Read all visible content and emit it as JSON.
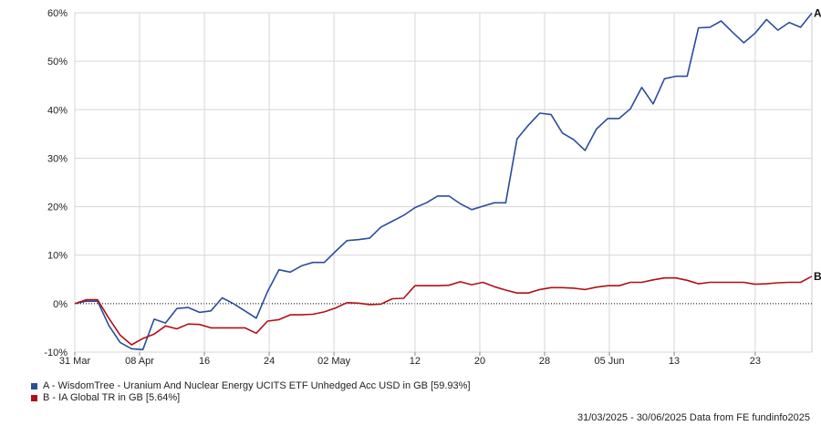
{
  "chart_data": {
    "type": "line",
    "title": "",
    "xlabel": "",
    "ylabel": "",
    "ylim": [
      -10,
      60
    ],
    "yticks": [
      -10,
      0,
      10,
      20,
      30,
      40,
      50,
      60
    ],
    "ytick_labels": [
      "-10%",
      "0%",
      "10%",
      "20%",
      "30%",
      "40%",
      "50%",
      "60%"
    ],
    "x_domain": [
      "2025-03-31",
      "2025-06-30"
    ],
    "xticks": [
      {
        "date": "2025-03-31",
        "label": "31 Mar"
      },
      {
        "date": "2025-04-08",
        "label": "08 Apr"
      },
      {
        "date": "2025-04-16",
        "label": "16"
      },
      {
        "date": "2025-04-24",
        "label": "24"
      },
      {
        "date": "2025-05-02",
        "label": "02 May"
      },
      {
        "date": "2025-05-12",
        "label": "12"
      },
      {
        "date": "2025-05-20",
        "label": "20"
      },
      {
        "date": "2025-05-28",
        "label": "28"
      },
      {
        "date": "2025-06-05",
        "label": "05 Jun"
      },
      {
        "date": "2025-06-13",
        "label": "13"
      },
      {
        "date": "2025-06-23",
        "label": "23"
      }
    ],
    "grid": true,
    "zero_line": "dotted",
    "series": [
      {
        "name": "A - WisdomTree - Uranium And Nuclear Energy UCITS ETF Unhedged Acc USD in GB [59.93%]",
        "end_label": "A",
        "color": "#2a4d9c",
        "points": [
          [
            "2025-03-31",
            0
          ],
          [
            "2025-04-01",
            0.5
          ],
          [
            "2025-04-02",
            0.5
          ],
          [
            "2025-04-03",
            -4.5
          ],
          [
            "2025-04-04",
            -8
          ],
          [
            "2025-04-05",
            -9.3
          ],
          [
            "2025-04-06",
            -9.5
          ],
          [
            "2025-04-07",
            -3.2
          ],
          [
            "2025-04-08",
            -4
          ],
          [
            "2025-04-09",
            -1
          ],
          [
            "2025-04-10",
            -0.8
          ],
          [
            "2025-04-11",
            -1.8
          ],
          [
            "2025-04-12",
            -1.5
          ],
          [
            "2025-04-13",
            1.2
          ],
          [
            "2025-04-14",
            0
          ],
          [
            "2025-04-15",
            -1.5
          ],
          [
            "2025-04-16",
            -3
          ],
          [
            "2025-04-17",
            2.5
          ],
          [
            "2025-04-18",
            7
          ],
          [
            "2025-04-19",
            6.5
          ],
          [
            "2025-04-20",
            7.8
          ],
          [
            "2025-04-21",
            8.5
          ],
          [
            "2025-04-22",
            8.5
          ],
          [
            "2025-04-23",
            10.8
          ],
          [
            "2025-04-24",
            13
          ],
          [
            "2025-04-25",
            13.2
          ],
          [
            "2025-04-26",
            13.5
          ],
          [
            "2025-04-27",
            15.8
          ],
          [
            "2025-04-28",
            17
          ],
          [
            "2025-04-29",
            18.2
          ],
          [
            "2025-04-30",
            19.8
          ],
          [
            "2025-05-01",
            20.8
          ],
          [
            "2025-05-02",
            22.2
          ],
          [
            "2025-05-03",
            22.2
          ],
          [
            "2025-05-04",
            20.6
          ],
          [
            "2025-05-05",
            19.4
          ],
          [
            "2025-05-06",
            20.1
          ],
          [
            "2025-05-07",
            20.8
          ],
          [
            "2025-05-08",
            20.8
          ],
          [
            "2025-05-09",
            34
          ],
          [
            "2025-05-10",
            36.8
          ],
          [
            "2025-05-11",
            39.3
          ],
          [
            "2025-05-12",
            39
          ],
          [
            "2025-05-13",
            35.2
          ],
          [
            "2025-05-14",
            33.8
          ],
          [
            "2025-05-15",
            31.6
          ],
          [
            "2025-05-16",
            36
          ],
          [
            "2025-05-17",
            38.2
          ],
          [
            "2025-05-18",
            38.2
          ],
          [
            "2025-05-19",
            40.2
          ],
          [
            "2025-05-20",
            44.6
          ],
          [
            "2025-05-21",
            41.2
          ],
          [
            "2025-05-22",
            46.4
          ],
          [
            "2025-05-23",
            46.9
          ],
          [
            "2025-05-24",
            46.9
          ],
          [
            "2025-05-25",
            56.9
          ],
          [
            "2025-05-26",
            57
          ],
          [
            "2025-05-27",
            58.3
          ],
          [
            "2025-05-28",
            56
          ],
          [
            "2025-05-29",
            53.8
          ],
          [
            "2025-05-30",
            55.8
          ],
          [
            "2025-05-31",
            58.6
          ],
          [
            "2025-06-01",
            56.4
          ],
          [
            "2025-06-02",
            58
          ],
          [
            "2025-06-03",
            57
          ],
          [
            "2025-06-04",
            59.93
          ]
        ]
      },
      {
        "name": "B - IA Global TR in GB [5.64%]",
        "end_label": "B",
        "color": "#b01116",
        "points": [
          [
            "2025-03-31",
            0
          ],
          [
            "2025-04-01",
            0.8
          ],
          [
            "2025-04-02",
            0.8
          ],
          [
            "2025-04-03",
            -3
          ],
          [
            "2025-04-04",
            -6.5
          ],
          [
            "2025-04-05",
            -8.5
          ],
          [
            "2025-04-06",
            -7.2
          ],
          [
            "2025-04-07",
            -6.3
          ],
          [
            "2025-04-08",
            -4.6
          ],
          [
            "2025-04-09",
            -5.2
          ],
          [
            "2025-04-10",
            -4.2
          ],
          [
            "2025-04-11",
            -4.3
          ],
          [
            "2025-04-12",
            -5
          ],
          [
            "2025-04-13",
            -5
          ],
          [
            "2025-04-14",
            -5
          ],
          [
            "2025-04-15",
            -5
          ],
          [
            "2025-04-16",
            -6.1
          ],
          [
            "2025-04-17",
            -3.6
          ],
          [
            "2025-04-18",
            -3.3
          ],
          [
            "2025-04-19",
            -2.3
          ],
          [
            "2025-04-20",
            -2.3
          ],
          [
            "2025-04-21",
            -2.2
          ],
          [
            "2025-04-22",
            -1.7
          ],
          [
            "2025-04-23",
            -0.9
          ],
          [
            "2025-04-24",
            0.2
          ],
          [
            "2025-04-25",
            0.1
          ],
          [
            "2025-04-26",
            -0.2
          ],
          [
            "2025-04-27",
            -0.1
          ],
          [
            "2025-04-28",
            1
          ],
          [
            "2025-04-29",
            1.1
          ],
          [
            "2025-04-30",
            3.7
          ],
          [
            "2025-05-01",
            3.7
          ],
          [
            "2025-05-02",
            3.7
          ],
          [
            "2025-05-03",
            3.8
          ],
          [
            "2025-05-04",
            4.5
          ],
          [
            "2025-05-05",
            3.9
          ],
          [
            "2025-05-06",
            4.4
          ],
          [
            "2025-05-07",
            3.5
          ],
          [
            "2025-05-08",
            2.8
          ],
          [
            "2025-05-09",
            2.2
          ],
          [
            "2025-05-10",
            2.2
          ],
          [
            "2025-05-11",
            2.9
          ],
          [
            "2025-05-12",
            3.3
          ],
          [
            "2025-05-13",
            3.3
          ],
          [
            "2025-05-14",
            3.2
          ],
          [
            "2025-05-15",
            2.9
          ],
          [
            "2025-05-16",
            3.4
          ],
          [
            "2025-05-17",
            3.7
          ],
          [
            "2025-05-18",
            3.7
          ],
          [
            "2025-05-19",
            4.4
          ],
          [
            "2025-05-20",
            4.4
          ],
          [
            "2025-05-21",
            4.9
          ],
          [
            "2025-05-22",
            5.3
          ],
          [
            "2025-05-23",
            5.3
          ],
          [
            "2025-05-24",
            4.8
          ],
          [
            "2025-05-25",
            4.1
          ],
          [
            "2025-05-26",
            4.4
          ],
          [
            "2025-05-27",
            4.4
          ],
          [
            "2025-05-28",
            4.4
          ],
          [
            "2025-05-29",
            4.4
          ],
          [
            "2025-05-30",
            4
          ],
          [
            "2025-05-31",
            4.1
          ],
          [
            "2025-06-01",
            4.3
          ],
          [
            "2025-06-02",
            4.4
          ],
          [
            "2025-06-03",
            4.4
          ],
          [
            "2025-06-04",
            5.64
          ]
        ]
      }
    ]
  },
  "footer": {
    "text": "31/03/2025 - 30/06/2025 Data from FE fundinfo2025"
  }
}
